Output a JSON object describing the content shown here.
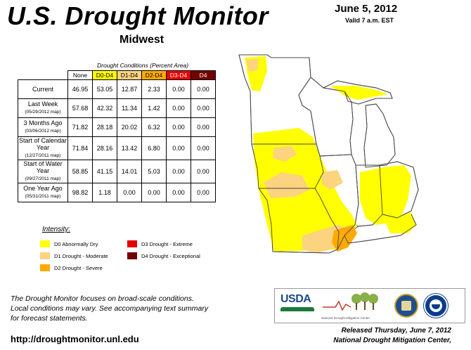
{
  "header": {
    "title": "U.S. Drought Monitor",
    "region": "Midwest",
    "date": "June 5, 2012",
    "valid": "Valid 7 a.m. EST"
  },
  "table": {
    "caption": "Drought Conditions (Percent Area)",
    "columns": [
      "None",
      "D0-D4",
      "D1-D4",
      "D2-D4",
      "D3-D4",
      "D4"
    ],
    "rows": [
      {
        "label": "Current",
        "sub": "",
        "values": [
          "46.95",
          "53.05",
          "12.87",
          "2.33",
          "0.00",
          "0.00"
        ]
      },
      {
        "label": "Last Week",
        "sub": "(05/29/2012 map)",
        "values": [
          "57.68",
          "42.32",
          "11.34",
          "1.42",
          "0.00",
          "0.00"
        ]
      },
      {
        "label": "3 Months Ago",
        "sub": "(03/06/2012 map)",
        "values": [
          "71.82",
          "28.18",
          "20.02",
          "6.32",
          "0.00",
          "0.00"
        ]
      },
      {
        "label": "Start of Calendar Year",
        "sub": "(12/27/2011 map)",
        "values": [
          "71.84",
          "28.16",
          "13.42",
          "6.80",
          "0.00",
          "0.00"
        ]
      },
      {
        "label": "Start of Water Year",
        "sub": "(09/27/2011 map)",
        "values": [
          "58.85",
          "41.15",
          "14.01",
          "5.03",
          "0.00",
          "0.00"
        ]
      },
      {
        "label": "One Year Ago",
        "sub": "(05/31/2011 map)",
        "values": [
          "98.82",
          "1.18",
          "0.00",
          "0.00",
          "0.00",
          "0.00"
        ]
      }
    ]
  },
  "legend": {
    "title": "Intensity:",
    "items": [
      {
        "label": "D0 Abnormally Dry",
        "color": "#ffff00"
      },
      {
        "label": "D1 Drought - Moderate",
        "color": "#fcd37f"
      },
      {
        "label": "D2 Drought - Severe",
        "color": "#ffaa00"
      },
      {
        "label": "D3 Drought - Extreme",
        "color": "#e60000"
      },
      {
        "label": "D4 Drought - Exceptional",
        "color": "#730000"
      }
    ]
  },
  "footer": {
    "note_lines": [
      "The Drought Monitor focuses on broad-scale conditions.",
      "Local conditions may vary. See accompanying text summary",
      "for forecast statements."
    ],
    "url": "http://droughtmonitor.unl.edu",
    "released_1": "Released Thursday, June 7, 2012",
    "released_2": "National Drought Mitigation Center,"
  },
  "logos": {
    "usda": "USDA",
    "ndmc": "National Drought Mitigation Center"
  }
}
